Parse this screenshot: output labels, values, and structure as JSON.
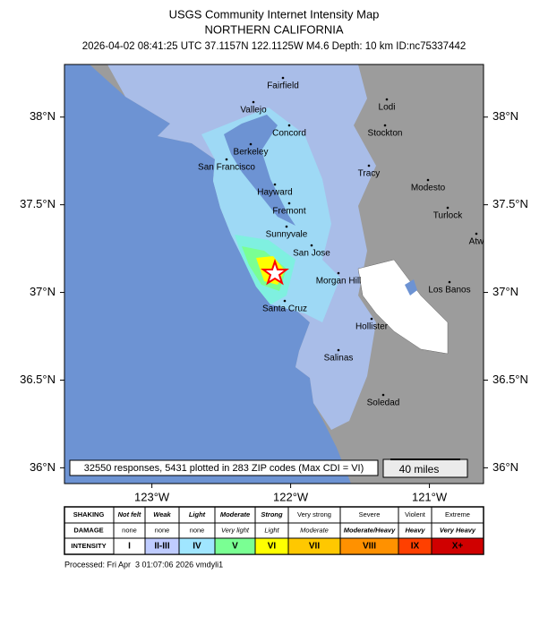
{
  "header": {
    "title": "USGS Community Internet Intensity Map",
    "region": "NORTHERN CALIFORNIA",
    "event": "2026-04-02 08:41:25 UTC 37.1157N 122.1125W M4.6 Depth: 10 km ID:nc75337442"
  },
  "map": {
    "lat_range": [
      35.91,
      38.3
    ],
    "lon_range": [
      -123.63,
      -120.61
    ],
    "lat_ticks": [
      {
        "value": 38,
        "label": "38°N"
      },
      {
        "value": 37.5,
        "label": "37.5°N"
      },
      {
        "value": 37,
        "label": "37°N"
      },
      {
        "value": 36.5,
        "label": "36.5°N"
      },
      {
        "value": 36,
        "label": "36°N"
      }
    ],
    "lon_ticks": [
      {
        "value": -123,
        "label": "123°W"
      },
      {
        "value": -122,
        "label": "122°W"
      },
      {
        "value": -121,
        "label": "121°W"
      }
    ],
    "cities": [
      "Fairfield",
      "Lodi",
      "Vallejo",
      "Concord",
      "Stockton",
      "Berkeley",
      "San Francisco",
      "Tracy",
      "Modesto",
      "Hayward",
      "Fremont",
      "Turlock",
      "Atw",
      "Sunnyvale",
      "San Jose",
      "Morgan Hill",
      "Los Banos",
      "Santa Cruz",
      "Hollister",
      "Salinas",
      "Soledad"
    ],
    "summary": "32550 responses, 5431 plotted in 283 ZIP codes (Max CDI = VI)",
    "scale_bar": "40 miles"
  },
  "legend": {
    "row_labels": [
      "SHAKING",
      "DAMAGE",
      "INTENSITY"
    ],
    "columns": [
      {
        "shaking": "Not felt",
        "damage": "none",
        "intensity": "I",
        "color": "#ffffff"
      },
      {
        "shaking": "Weak",
        "damage": "none",
        "intensity": "II-III",
        "color": "#bfccff"
      },
      {
        "shaking": "Light",
        "damage": "none",
        "intensity": "IV",
        "color": "#a0e6ff"
      },
      {
        "shaking": "Moderate",
        "damage": "Very light",
        "intensity": "V",
        "color": "#7aff93"
      },
      {
        "shaking": "Strong",
        "damage": "Light",
        "intensity": "VI",
        "color": "#ffff00"
      },
      {
        "shaking": "Very strong",
        "damage": "Moderate",
        "intensity": "VII",
        "color": "#ffc800"
      },
      {
        "shaking": "Severe",
        "damage": "Moderate/Heavy",
        "intensity": "VIII",
        "color": "#ff9100"
      },
      {
        "shaking": "Violent",
        "damage": "Heavy",
        "intensity": "IX",
        "color": "#ff4000"
      },
      {
        "shaking": "Extreme",
        "damage": "Very Heavy",
        "intensity": "X+",
        "color": "#d00000"
      }
    ]
  },
  "footer": "Processed: Fri Apr  3 01:07:06 2026 vmdyli1"
}
